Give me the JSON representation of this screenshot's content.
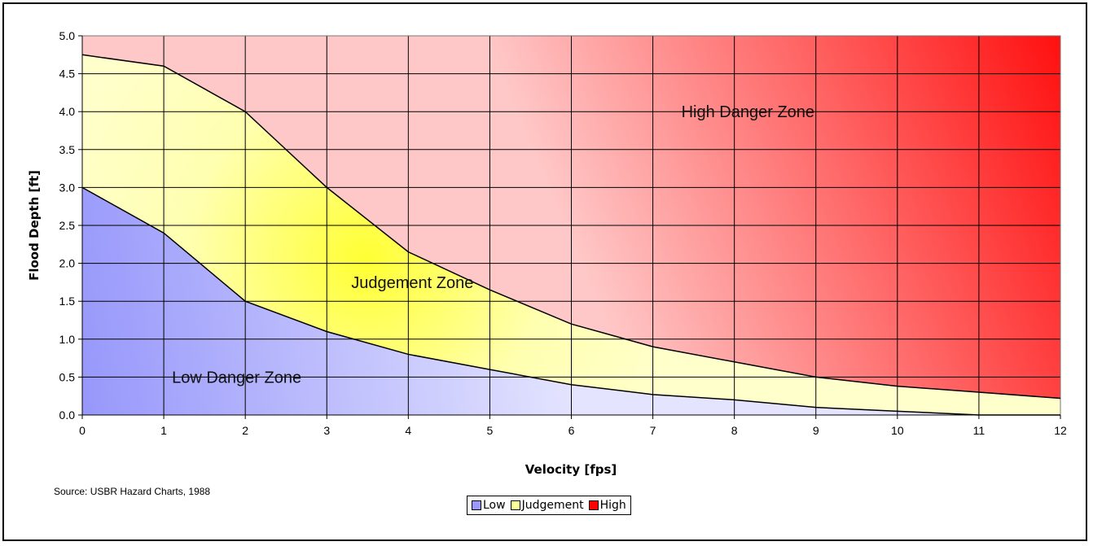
{
  "chart_data": {
    "type": "area",
    "title": "",
    "xlabel": "Velocity [fps]",
    "ylabel": "Flood Depth [ft]",
    "xlim": [
      0,
      12
    ],
    "ylim": [
      0,
      5
    ],
    "x_ticks": [
      "0",
      "1",
      "2",
      "3",
      "4",
      "5",
      "6",
      "7",
      "8",
      "9",
      "10",
      "11",
      "12"
    ],
    "y_ticks": [
      "0.0",
      "0.5",
      "1.0",
      "1.5",
      "2.0",
      "2.5",
      "3.0",
      "3.5",
      "4.0",
      "4.5",
      "5.0"
    ],
    "grid": true,
    "x": [
      0,
      1,
      2,
      3,
      4,
      5,
      6,
      7,
      8,
      9,
      10,
      11,
      12
    ],
    "series": [
      {
        "name": "Low",
        "values": [
          3.0,
          2.4,
          1.5,
          1.1,
          0.8,
          0.6,
          0.4,
          0.27,
          0.2,
          0.1,
          0.05,
          0.0,
          0.0
        ]
      },
      {
        "name": "Judgement",
        "values": [
          4.75,
          4.6,
          4.0,
          3.0,
          2.15,
          1.65,
          1.2,
          0.9,
          0.7,
          0.5,
          0.38,
          0.3,
          0.22
        ]
      },
      {
        "name": "High",
        "values": [
          5.0,
          5.0,
          5.0,
          5.0,
          5.0,
          5.0,
          5.0,
          5.0,
          5.0,
          5.0,
          5.0,
          5.0,
          5.0
        ]
      }
    ],
    "annotations": [
      {
        "text": "High Danger Zone",
        "x": 7.35,
        "y": 4.0
      },
      {
        "text": "Judgement Zone",
        "x": 3.3,
        "y": 1.75
      },
      {
        "text": "Low Danger Zone",
        "x": 1.1,
        "y": 0.5
      }
    ],
    "legend_position": "bottom-center",
    "colors": {
      "low": "#9999ff",
      "judgement": "#ffff99",
      "high": "#ff0000"
    }
  },
  "source_note": "Source: USBR Hazard Charts, 1988"
}
